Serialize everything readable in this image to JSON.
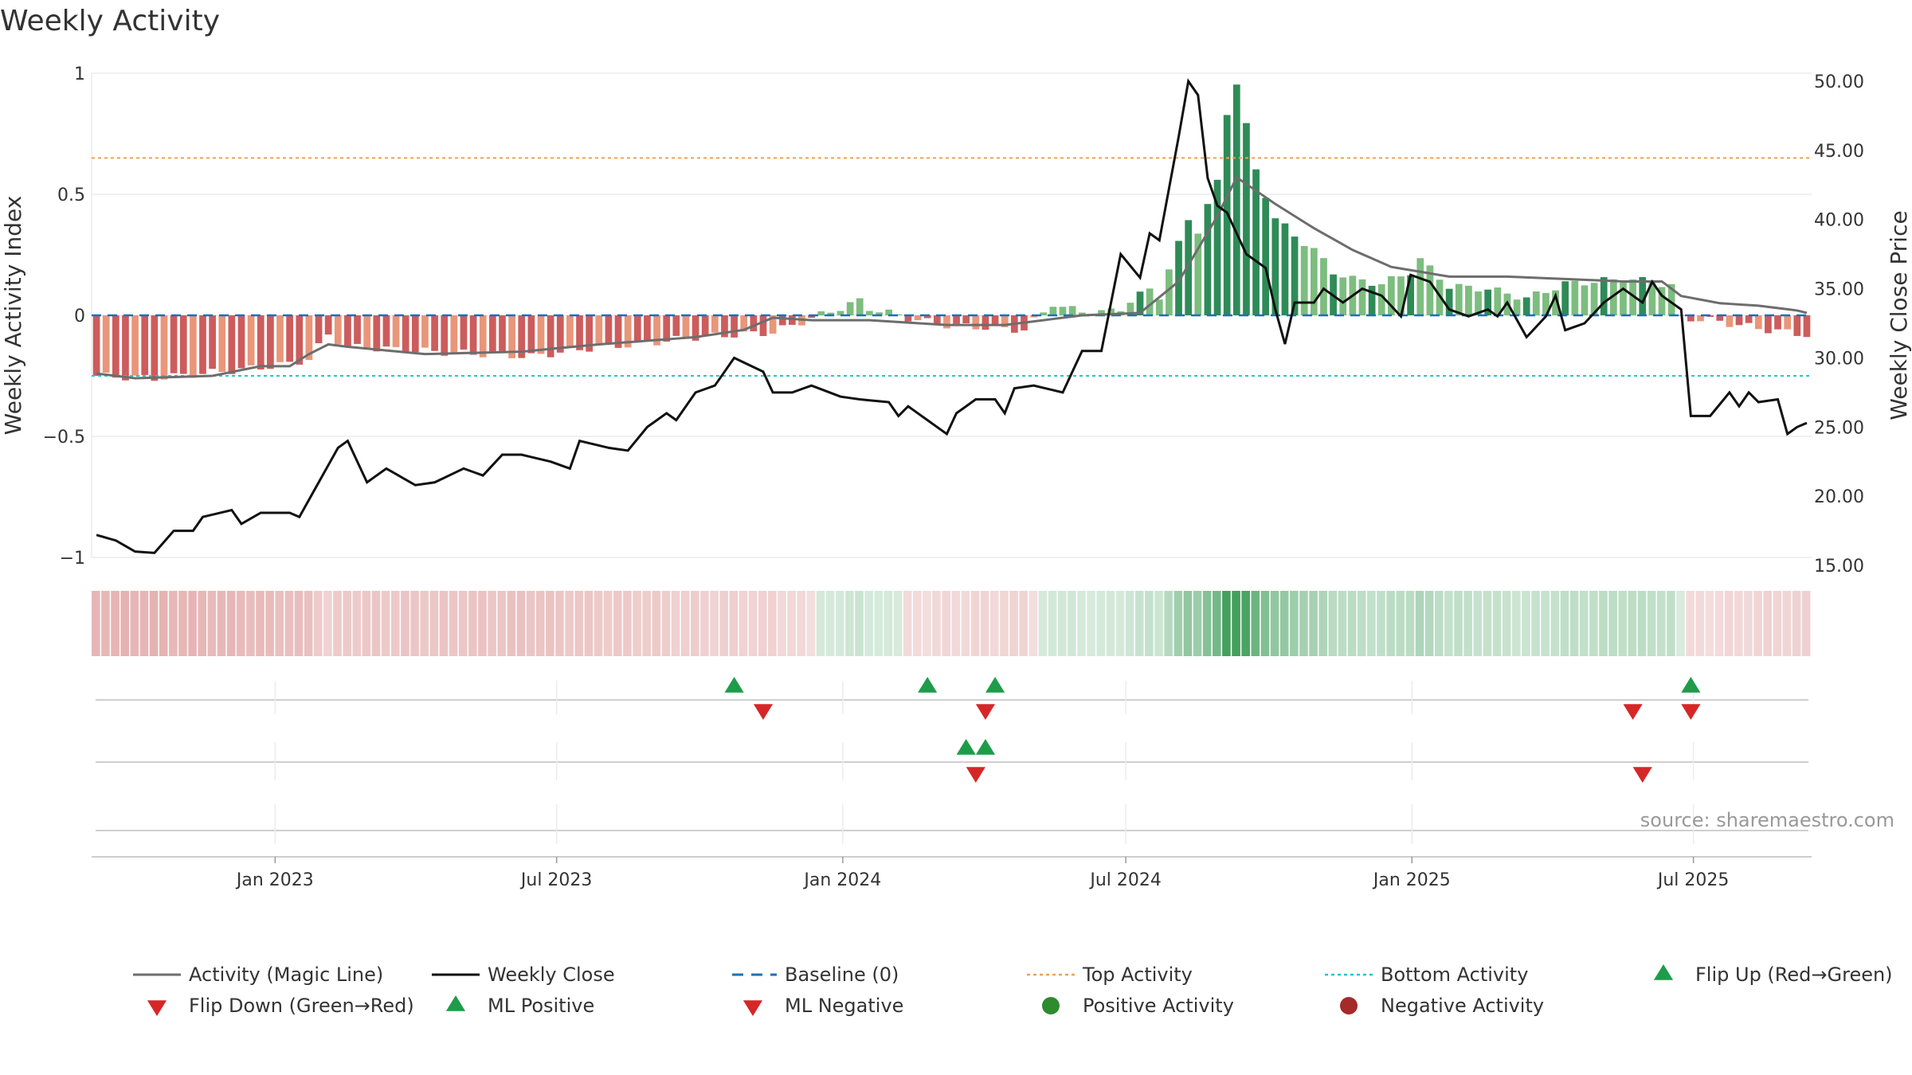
{
  "title": "Weekly Activity",
  "source": "source: sharemaestro.com",
  "colors": {
    "magic_line": "#6d6d6d",
    "close_line": "#111111",
    "baseline": "#1f6fb4",
    "top": "#f0a050",
    "bottom": "#27c4d4",
    "up": "#1e9c4a",
    "down": "#d62728",
    "pos_dark": "#2e8b57",
    "pos_light": "#7dbd7f",
    "neg_dark": "#cd5c5c",
    "neg_light": "#e9967a",
    "grid": "#ebebeb",
    "axis": "#cccccc"
  },
  "chart_data": {
    "type": "bar",
    "title": "Weekly Activity",
    "ylabel": "Weekly Activity Index",
    "y2label": "Weekly Close Price",
    "ylim": [
      -1,
      1
    ],
    "y2lim": [
      15,
      50
    ],
    "yticks": [
      "1",
      "0.5",
      "0",
      "−0.5",
      "−1"
    ],
    "y2ticks": [
      "50.00",
      "45.00",
      "40.00",
      "35.00",
      "30.00",
      "25.00",
      "20.00",
      "15.00"
    ],
    "top_activity": 0.65,
    "bottom_activity": -0.25,
    "x_range": [
      "2022-09-05",
      "2025-09-15"
    ],
    "xticks": [
      {
        "date": "2023-01-01",
        "label": "Jan 2023"
      },
      {
        "date": "2023-07-01",
        "label": "Jul 2023"
      },
      {
        "date": "2024-01-01",
        "label": "Jan 2024"
      },
      {
        "date": "2024-07-01",
        "label": "Jul 2024"
      },
      {
        "date": "2025-01-01",
        "label": "Jan 2025"
      },
      {
        "date": "2025-07-01",
        "label": "Jul 2025"
      }
    ],
    "activity_keyframes": [
      [
        0,
        -0.25
      ],
      [
        6,
        -0.26
      ],
      [
        16,
        -0.22
      ],
      [
        20,
        -0.2
      ],
      [
        22,
        -0.18
      ],
      [
        24,
        -0.08
      ],
      [
        26,
        -0.13
      ],
      [
        35,
        -0.15
      ],
      [
        45,
        -0.17
      ],
      [
        52,
        -0.13
      ],
      [
        56,
        -0.12
      ],
      [
        62,
        -0.09
      ],
      [
        70,
        -0.07
      ],
      [
        79,
        0.06
      ],
      [
        80,
        0.03
      ],
      [
        81,
        0.02
      ],
      [
        85,
        -0.02
      ],
      [
        88,
        -0.04
      ],
      [
        96,
        -0.06
      ],
      [
        99,
        0.05
      ],
      [
        100,
        0.03
      ],
      [
        104,
        0.01
      ],
      [
        106,
        0.03
      ],
      [
        109,
        0.11
      ],
      [
        110,
        0.08
      ],
      [
        113,
        0.4
      ],
      [
        114,
        0.35
      ],
      [
        116,
        0.55
      ],
      [
        117,
        0.84
      ],
      [
        118,
        0.96
      ],
      [
        120,
        0.6
      ],
      [
        122,
        0.4
      ],
      [
        124,
        0.33
      ],
      [
        126,
        0.27
      ],
      [
        128,
        0.18
      ],
      [
        130,
        0.15
      ],
      [
        133,
        0.13
      ],
      [
        136,
        0.18
      ],
      [
        137,
        0.23
      ],
      [
        140,
        0.12
      ],
      [
        144,
        0.11
      ],
      [
        148,
        0.07
      ],
      [
        152,
        0.13
      ],
      [
        158,
        0.15
      ],
      [
        161,
        0.14
      ],
      [
        163,
        0.12
      ],
      [
        164,
        -0.01
      ],
      [
        167,
        -0.02
      ],
      [
        170,
        -0.04
      ],
      [
        173,
        -0.06
      ],
      [
        177,
        -0.08
      ]
    ],
    "magic_keyframes": [
      [
        0,
        -0.24
      ],
      [
        4,
        -0.26
      ],
      [
        12,
        -0.25
      ],
      [
        17,
        -0.21
      ],
      [
        20,
        -0.21
      ],
      [
        22,
        -0.16
      ],
      [
        24,
        -0.12
      ],
      [
        26,
        -0.13
      ],
      [
        34,
        -0.16
      ],
      [
        44,
        -0.15
      ],
      [
        52,
        -0.12
      ],
      [
        62,
        -0.09
      ],
      [
        67,
        -0.06
      ],
      [
        70,
        -0.01
      ],
      [
        74,
        -0.02
      ],
      [
        80,
        -0.02
      ],
      [
        88,
        -0.04
      ],
      [
        94,
        -0.04
      ],
      [
        102,
        0.0
      ],
      [
        108,
        0.01
      ],
      [
        112,
        0.14
      ],
      [
        116,
        0.41
      ],
      [
        118,
        0.57
      ],
      [
        122,
        0.46
      ],
      [
        126,
        0.36
      ],
      [
        130,
        0.27
      ],
      [
        134,
        0.2
      ],
      [
        140,
        0.16
      ],
      [
        146,
        0.16
      ],
      [
        152,
        0.15
      ],
      [
        158,
        0.14
      ],
      [
        162,
        0.14
      ],
      [
        164,
        0.08
      ],
      [
        168,
        0.05
      ],
      [
        172,
        0.04
      ],
      [
        176,
        0.02
      ],
      [
        177,
        0.01
      ]
    ],
    "close_keyframes": [
      [
        0,
        17.2
      ],
      [
        2,
        16.8
      ],
      [
        4,
        16.0
      ],
      [
        6,
        15.9
      ],
      [
        8,
        17.5
      ],
      [
        10,
        17.5
      ],
      [
        11,
        18.5
      ],
      [
        14,
        19.0
      ],
      [
        15,
        18.0
      ],
      [
        17,
        18.8
      ],
      [
        20,
        18.8
      ],
      [
        21,
        18.5
      ],
      [
        25,
        23.5
      ],
      [
        26,
        24.0
      ],
      [
        27,
        22.5
      ],
      [
        28,
        21.0
      ],
      [
        30,
        22.0
      ],
      [
        33,
        20.8
      ],
      [
        35,
        21.0
      ],
      [
        38,
        22.0
      ],
      [
        40,
        21.5
      ],
      [
        42,
        23.0
      ],
      [
        44,
        23.0
      ],
      [
        47,
        22.5
      ],
      [
        49,
        22.0
      ],
      [
        50,
        24.0
      ],
      [
        53,
        23.5
      ],
      [
        55,
        23.3
      ],
      [
        57,
        25.0
      ],
      [
        59,
        26.0
      ],
      [
        60,
        25.5
      ],
      [
        62,
        27.5
      ],
      [
        64,
        28.0
      ],
      [
        66,
        30.0
      ],
      [
        69,
        29.0
      ],
      [
        70,
        27.5
      ],
      [
        72,
        27.5
      ],
      [
        74,
        28.0
      ],
      [
        77,
        27.2
      ],
      [
        79,
        27.0
      ],
      [
        82,
        26.8
      ],
      [
        83,
        25.8
      ],
      [
        84,
        26.5
      ],
      [
        86,
        25.5
      ],
      [
        88,
        24.5
      ],
      [
        89,
        26.0
      ],
      [
        91,
        27.0
      ],
      [
        93,
        27.0
      ],
      [
        94,
        26.0
      ],
      [
        95,
        27.8
      ],
      [
        97,
        28.0
      ],
      [
        100,
        27.5
      ],
      [
        102,
        30.5
      ],
      [
        104,
        30.5
      ],
      [
        106,
        37.5
      ],
      [
        108,
        35.8
      ],
      [
        109,
        39.0
      ],
      [
        110,
        38.5
      ],
      [
        112,
        46.0
      ],
      [
        113,
        50.0
      ],
      [
        114,
        49.0
      ],
      [
        115,
        43.0
      ],
      [
        116,
        41.0
      ],
      [
        117,
        40.5
      ],
      [
        119,
        37.5
      ],
      [
        121,
        36.5
      ],
      [
        122,
        33.5
      ],
      [
        123,
        31.0
      ],
      [
        124,
        34.0
      ],
      [
        126,
        34.0
      ],
      [
        127,
        35.0
      ],
      [
        129,
        34.0
      ],
      [
        131,
        35.0
      ],
      [
        133,
        34.5
      ],
      [
        135,
        33.0
      ],
      [
        136,
        36.0
      ],
      [
        138,
        35.5
      ],
      [
        140,
        33.5
      ],
      [
        142,
        33.0
      ],
      [
        144,
        33.5
      ],
      [
        145,
        33.0
      ],
      [
        146,
        34.0
      ],
      [
        148,
        31.5
      ],
      [
        150,
        33.0
      ],
      [
        151,
        34.5
      ],
      [
        152,
        32.0
      ],
      [
        154,
        32.5
      ],
      [
        156,
        34.0
      ],
      [
        158,
        35.0
      ],
      [
        160,
        34.0
      ],
      [
        161,
        35.5
      ],
      [
        162,
        34.5
      ],
      [
        164,
        33.5
      ],
      [
        165,
        25.8
      ],
      [
        167,
        25.8
      ],
      [
        169,
        27.5
      ],
      [
        170,
        26.5
      ],
      [
        171,
        27.5
      ],
      [
        172,
        26.8
      ],
      [
        174,
        27.0
      ],
      [
        175,
        24.5
      ],
      [
        176,
        25.0
      ],
      [
        177,
        25.3
      ]
    ]
  },
  "signals": {
    "row1_label": "",
    "flip_up_weeks": [
      66,
      86,
      93,
      165
    ],
    "flip_down_weeks": [
      69,
      92,
      159,
      165
    ],
    "ml_positive_weeks": [
      90,
      92
    ],
    "ml_negative_weeks": [
      91,
      160
    ]
  },
  "legend": [
    {
      "label": "Activity (Magic Line)",
      "kind": "line",
      "color": "#6d6d6d"
    },
    {
      "label": "Weekly Close",
      "kind": "line",
      "color": "#111111"
    },
    {
      "label": "Baseline (0)",
      "kind": "dash",
      "color": "#1f6fb4"
    },
    {
      "label": "Top Activity",
      "kind": "dot",
      "color": "#f0a050"
    },
    {
      "label": "Bottom Activity",
      "kind": "dot",
      "color": "#27c4d4"
    },
    {
      "label": "Flip Up (Red→Green)",
      "kind": "up",
      "color": "#1e9c4a"
    },
    {
      "label": "Flip Down (Green→Red)",
      "kind": "down",
      "color": "#d62728"
    },
    {
      "label": "ML Positive",
      "kind": "up",
      "color": "#1e9c4a"
    },
    {
      "label": "ML Negative",
      "kind": "down",
      "color": "#d62728"
    },
    {
      "label": "Positive Activity",
      "kind": "circle",
      "color": "#2e8b2e"
    },
    {
      "label": "Negative Activity",
      "kind": "circle",
      "color": "#a52a2a"
    }
  ]
}
